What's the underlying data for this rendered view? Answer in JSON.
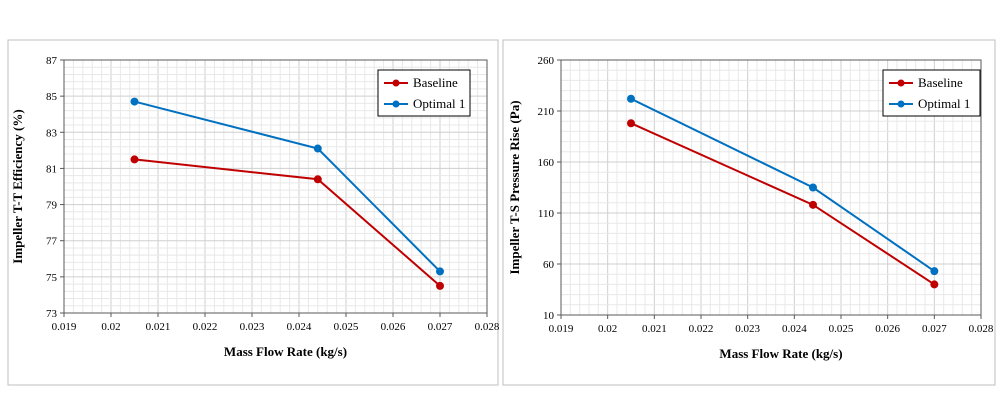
{
  "chart_data": [
    {
      "type": "line",
      "title": "",
      "xlabel": "Mass Flow Rate (kg/s)",
      "ylabel": "Impeller T-T Efficiency (%)",
      "xlim": [
        0.019,
        0.028
      ],
      "ylim": [
        73,
        87
      ],
      "xticks": [
        "0.019",
        "0.02",
        "0.021",
        "0.022",
        "0.023",
        "0.024",
        "0.025",
        "0.026",
        "0.027",
        "0.028"
      ],
      "yticks": [
        "73",
        "75",
        "77",
        "79",
        "81",
        "83",
        "85",
        "87"
      ],
      "grid": true,
      "legend_position": "top-right",
      "x": [
        0.0205,
        0.0244,
        0.027
      ],
      "series": [
        {
          "name": "Baseline",
          "color": "#c00000",
          "values": [
            81.5,
            80.4,
            74.5
          ]
        },
        {
          "name": "Optimal 1",
          "color": "#0070c0",
          "values": [
            84.7,
            82.1,
            75.3
          ]
        }
      ]
    },
    {
      "type": "line",
      "title": "",
      "xlabel": "Mass Flow Rate (kg/s)",
      "ylabel": "Impeller T-S Pressure Rise (Pa)",
      "xlim": [
        0.019,
        0.028
      ],
      "ylim": [
        10,
        260
      ],
      "xticks": [
        "0.019",
        "0.02",
        "0.021",
        "0.022",
        "0.023",
        "0.024",
        "0.025",
        "0.026",
        "0.027",
        "0.028"
      ],
      "yticks": [
        "10",
        "60",
        "110",
        "160",
        "210",
        "260"
      ],
      "grid": true,
      "legend_position": "top-right",
      "x": [
        0.0205,
        0.0244,
        0.027
      ],
      "series": [
        {
          "name": "Baseline",
          "color": "#c00000",
          "values": [
            198,
            118,
            40
          ]
        },
        {
          "name": "Optimal 1",
          "color": "#0070c0",
          "values": [
            222,
            135,
            53
          ]
        }
      ]
    }
  ]
}
